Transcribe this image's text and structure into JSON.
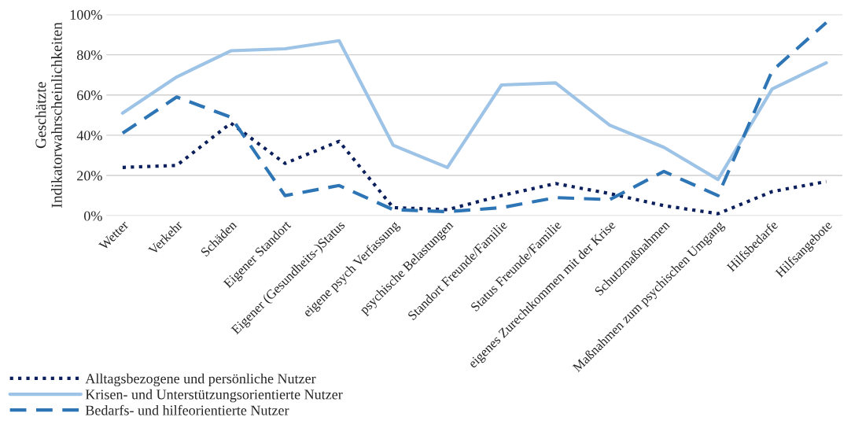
{
  "chart_data": {
    "type": "line",
    "ylabel": "Geschätzte\nIndikatorwahrscheinlichkeiten",
    "categories": [
      "Wetter",
      "Verkehr",
      "Schäden",
      "Eigener Standort",
      "Eigener (Gesundheits-)Status",
      "eigene psych Verfassung",
      "psychische Belastungen",
      "Standort Freunde/Familie",
      "Status Freunde/Familie",
      "eigenes Zurechtkommen mit der Krise",
      "Schutzmaßnahmen",
      "Maßnahmen zum psychischen Umgang",
      "Hilfsbedarfe",
      "Hilfsangebote"
    ],
    "series": [
      {
        "name": "Alltagsbezogene und persönliche Nutzer",
        "color": "#0b1f5c",
        "line_style": "dotted",
        "values": [
          24,
          25,
          46,
          26,
          37,
          4,
          3,
          10,
          16,
          11,
          5,
          1,
          12,
          17
        ]
      },
      {
        "name": "Krisen- und Unterstützungsorientierte Nutzer",
        "color": "#9dc3e6",
        "line_style": "solid",
        "values": [
          51,
          69,
          82,
          83,
          87,
          35,
          24,
          65,
          66,
          45,
          34,
          18,
          63,
          76
        ]
      },
      {
        "name": "Bedarfs- und hilfeorientierte Nutzer",
        "color": "#2e75b6",
        "line_style": "dashed",
        "values": [
          41,
          59,
          49,
          10,
          15,
          3,
          2,
          4,
          9,
          8,
          22,
          10,
          72,
          96
        ]
      }
    ],
    "ylim": [
      0,
      100
    ],
    "yticks": [
      {
        "value": 0,
        "label": "0%"
      },
      {
        "value": 20,
        "label": "20%"
      },
      {
        "value": 40,
        "label": "40%"
      },
      {
        "value": 60,
        "label": "60%"
      },
      {
        "value": 80,
        "label": "80%"
      },
      {
        "value": 100,
        "label": "100%"
      }
    ],
    "grid": "y",
    "legend": "bottom left"
  }
}
